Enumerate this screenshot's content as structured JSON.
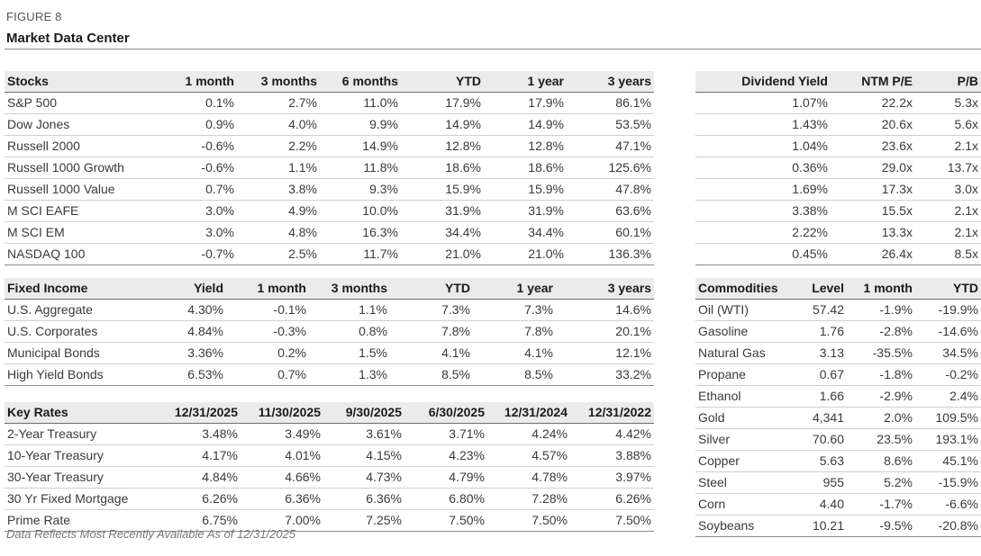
{
  "figure_label": "FIGURE 8",
  "title": "Market Data Center",
  "stocks": {
    "headers": [
      "Stocks",
      "1 month",
      "3 months",
      "6 months",
      "YTD",
      "1 year",
      "3 years"
    ],
    "rows": [
      [
        "S&P 500",
        "0.1%",
        "2.7%",
        "11.0%",
        "17.9%",
        "17.9%",
        "86.1%"
      ],
      [
        "Dow Jones",
        "0.9%",
        "4.0%",
        "9.9%",
        "14.9%",
        "14.9%",
        "53.5%"
      ],
      [
        "Russell 2000",
        "-0.6%",
        "2.2%",
        "14.9%",
        "12.8%",
        "12.8%",
        "47.1%"
      ],
      [
        "Russell 1000 Growth",
        "-0.6%",
        "1.1%",
        "11.8%",
        "18.6%",
        "18.6%",
        "125.6%"
      ],
      [
        "Russell 1000 Value",
        "0.7%",
        "3.8%",
        "9.3%",
        "15.9%",
        "15.9%",
        "47.8%"
      ],
      [
        "M SCI EAFE",
        "3.0%",
        "4.9%",
        "10.0%",
        "31.9%",
        "31.9%",
        "63.6%"
      ],
      [
        "M SCI EM",
        "3.0%",
        "4.8%",
        "16.3%",
        "34.4%",
        "34.4%",
        "60.1%"
      ],
      [
        "NASDAQ 100",
        "-0.7%",
        "2.5%",
        "11.7%",
        "21.0%",
        "21.0%",
        "136.3%"
      ]
    ]
  },
  "valuation": {
    "headers": [
      "Dividend Yield",
      "NTM P/E",
      "P/B"
    ],
    "rows": [
      [
        "1.07%",
        "22.2x",
        "5.3x"
      ],
      [
        "1.43%",
        "20.6x",
        "5.6x"
      ],
      [
        "1.04%",
        "23.6x",
        "2.1x"
      ],
      [
        "0.36%",
        "29.0x",
        "13.7x"
      ],
      [
        "1.69%",
        "17.3x",
        "3.0x"
      ],
      [
        "3.38%",
        "15.5x",
        "2.1x"
      ],
      [
        "2.22%",
        "13.3x",
        "2.1x"
      ],
      [
        "0.45%",
        "26.4x",
        "8.5x"
      ]
    ]
  },
  "fixed_income": {
    "headers": [
      "Fixed Income",
      "Yield",
      "1 month",
      "3 months",
      "YTD",
      "1 year",
      "3 years"
    ],
    "rows": [
      [
        "U.S. Aggregate",
        "4.30%",
        "-0.1%",
        "1.1%",
        "7.3%",
        "7.3%",
        "14.6%"
      ],
      [
        "U.S. Corporates",
        "4.84%",
        "-0.3%",
        "0.8%",
        "7.8%",
        "7.8%",
        "20.1%"
      ],
      [
        "Municipal Bonds",
        "3.36%",
        "0.2%",
        "1.5%",
        "4.1%",
        "4.1%",
        "12.1%"
      ],
      [
        "High Yield Bonds",
        "6.53%",
        "0.7%",
        "1.3%",
        "8.5%",
        "8.5%",
        "33.2%"
      ]
    ]
  },
  "key_rates": {
    "headers": [
      "Key Rates",
      "12/31/2025",
      "11/30/2025",
      "9/30/2025",
      "6/30/2025",
      "12/31/2024",
      "12/31/2022"
    ],
    "rows": [
      [
        "2-Year Treasury",
        "3.48%",
        "3.49%",
        "3.61%",
        "3.71%",
        "4.24%",
        "4.42%"
      ],
      [
        "10-Year Treasury",
        "4.17%",
        "4.01%",
        "4.15%",
        "4.23%",
        "4.57%",
        "3.88%"
      ],
      [
        "30-Year Treasury",
        "4.84%",
        "4.66%",
        "4.73%",
        "4.79%",
        "4.78%",
        "3.97%"
      ],
      [
        "30 Yr Fixed Mortgage",
        "6.26%",
        "6.36%",
        "6.36%",
        "6.80%",
        "7.28%",
        "6.26%"
      ],
      [
        "Prime Rate",
        "6.75%",
        "7.00%",
        "7.25%",
        "7.50%",
        "7.50%",
        "7.50%"
      ]
    ]
  },
  "commodities": {
    "headers": [
      "Commodities",
      "Level",
      "1 month",
      "YTD"
    ],
    "rows": [
      [
        "Oil (WTI)",
        "57.42",
        "-1.9%",
        "-19.9%"
      ],
      [
        "Gasoline",
        "1.76",
        "-2.8%",
        "-14.6%"
      ],
      [
        "Natural Gas",
        "3.13",
        "-35.5%",
        "34.5%"
      ],
      [
        "Propane",
        "0.67",
        "-1.8%",
        "-0.2%"
      ],
      [
        "Ethanol",
        "1.66",
        "-2.9%",
        "2.4%"
      ],
      [
        "Gold",
        "4,341",
        "2.0%",
        "109.5%"
      ],
      [
        "Silver",
        "70.60",
        "23.5%",
        "193.1%"
      ],
      [
        "Copper",
        "5.63",
        "8.6%",
        "45.1%"
      ],
      [
        "Steel",
        "955",
        "5.2%",
        "-15.9%"
      ],
      [
        "Corn",
        "4.40",
        "-1.7%",
        "-6.6%"
      ],
      [
        "Soybeans",
        "10.21",
        "-9.5%",
        "-20.8%"
      ]
    ]
  },
  "footnote": "Data Reflects Most Recently Available As of 12/31/2025"
}
